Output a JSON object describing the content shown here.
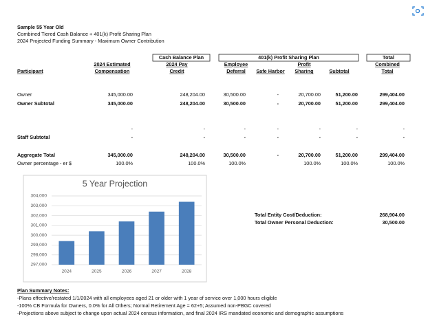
{
  "header": {
    "title": "Sample 55 Year Old",
    "subtitle": "Combined Tiered Cash Balance + 401(k) Profit Sharing Plan",
    "description": "2024 Projected Funding Summary - Maximum Owner Contribution"
  },
  "table": {
    "groups": [
      "Cash Balance Plan",
      "401(k) Profit Sharing Plan",
      "Total"
    ],
    "columns": [
      [
        "Participant"
      ],
      [
        "2024 Estimated",
        "Compensation"
      ],
      [
        "2024 Pay",
        "Credit"
      ],
      [
        "Employee",
        "Deferral"
      ],
      [
        "Safe Harbor"
      ],
      [
        "Profit",
        "Sharing"
      ],
      [
        "Subtotal"
      ],
      [
        "Combined",
        "Total"
      ]
    ],
    "rows": [
      [
        "Owner",
        "345,000.00",
        "248,204.00",
        "30,500.00",
        "-",
        "20,700.00",
        "51,200.00",
        "299,404.00"
      ],
      [
        "Owner Subtotal",
        "345,000.00",
        "248,204.00",
        "30,500.00",
        "-",
        "20,700.00",
        "51,200.00",
        "299,404.00"
      ],
      [
        null,
        "-",
        "-",
        "-",
        "-",
        "-",
        "-",
        "-"
      ],
      [
        "Staff Subtotal",
        "-",
        "-",
        "-",
        "-",
        "-",
        "-",
        "-"
      ],
      [
        "Aggregate Total",
        "345,000.00",
        "248,204.00",
        "30,500.00",
        "-",
        "20,700.00",
        "51,200.00",
        "299,404.00"
      ],
      [
        "Owner percentage - er $",
        "100.0%",
        "100.0%",
        "100.0%",
        null,
        "100.0%",
        "100.0%",
        "100.0%"
      ]
    ]
  },
  "chart_data": {
    "type": "bar",
    "title": "5 Year Projection",
    "categories": [
      "2024",
      "2025",
      "2026",
      "2027",
      "2028"
    ],
    "values": [
      299404,
      300404,
      301404,
      302404,
      303404
    ],
    "color": "#4a7ebb",
    "ylim": [
      297000,
      304000
    ],
    "yticks": [
      {
        "value": 297000,
        "label": "297,000"
      },
      {
        "value": 298000,
        "label": "298,000"
      },
      {
        "value": 299000,
        "label": "299,000"
      },
      {
        "value": 300000,
        "label": "300,000"
      },
      {
        "value": 301000,
        "label": "301,000"
      },
      {
        "value": 302000,
        "label": "302,000"
      },
      {
        "value": 303000,
        "label": "303,000"
      },
      {
        "value": 304000,
        "label": "304,000"
      }
    ],
    "grid": true
  },
  "summary": [
    [
      "Total Entity Cost/Deduction:",
      "268,904.00"
    ],
    [
      "Total Owner Personal Deduction:",
      "30,500.00"
    ]
  ],
  "notes": {
    "title": "Plan Summary Notes:",
    "lines": [
      "-Plans effective/restated 1/1/2024 with all employees aged 21 or older with 1 year of service over 1,000 hours eligible",
      "-100% CB Formula for Owners, 0.0% for All Others; Normal Retirement Age = 62+5; Assumed non-PBGC covered",
      "-Projections above subject to change upon actual 2024 census information, and final 2024 IRS mandated economic and demographic assumptions"
    ]
  }
}
